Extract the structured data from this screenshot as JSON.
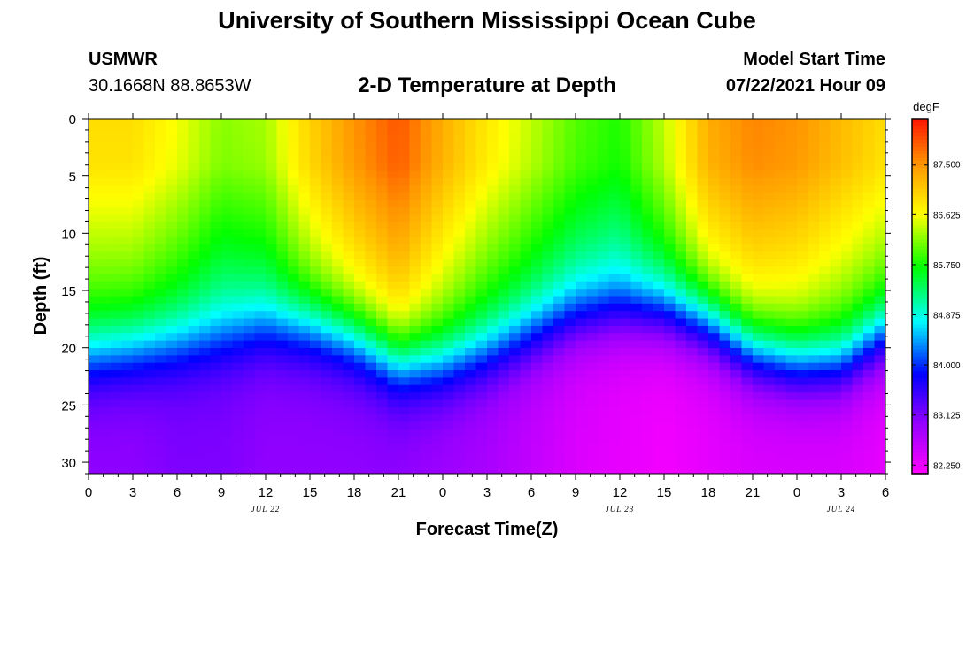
{
  "header": {
    "title": "University of Southern Mississippi Ocean Cube",
    "station": "USMWR",
    "coords": "30.1668N  88.8653W",
    "plot_title": "2-D Temperature at Depth",
    "model_start_label": "Model Start Time",
    "model_start_value": "07/22/2021 Hour 09"
  },
  "footer": {
    "title": "University of Southern Mississippi Ocean Cube"
  },
  "chart_data": {
    "type": "heatmap",
    "title": "2-D Temperature at Depth",
    "xlabel": "Forecast Time(Z)",
    "ylabel": "Depth (ft)",
    "x_range_hours": [
      0,
      54
    ],
    "xlim_description": "Jul 22 00Z to Jul 24 06Z",
    "x_ticks": [
      "0",
      "3",
      "6",
      "9",
      "12",
      "15",
      "18",
      "21",
      "0",
      "3",
      "6",
      "9",
      "12",
      "15",
      "18",
      "21",
      "0",
      "3",
      "6"
    ],
    "date_labels": [
      {
        "label": "JUL 22",
        "hour": 12
      },
      {
        "label": "JUL 23",
        "hour": 36
      },
      {
        "label": "JUL 24",
        "hour": 51
      }
    ],
    "ylim": [
      0,
      31
    ],
    "y_ticks": [
      0,
      5,
      10,
      15,
      20,
      25,
      30
    ],
    "colorbar": {
      "unit": "degF",
      "min": 82.1,
      "max": 88.3,
      "ticks": [
        "87.500",
        "86.625",
        "85.750",
        "84.875",
        "84.000",
        "83.125",
        "82.250"
      ]
    },
    "surface_temp_degF_by_3h": [
      86.9,
      86.9,
      86.6,
      86.2,
      86.3,
      87.0,
      87.5,
      87.9,
      87.3,
      86.8,
      86.4,
      86.0,
      85.8,
      86.4,
      87.3,
      87.6,
      87.5,
      87.2,
      86.9
    ],
    "thermocline_depth_ft_by_3h": [
      21.0,
      20.5,
      20.0,
      19.5,
      18.5,
      18.5,
      19.5,
      21.5,
      21.5,
      20.5,
      19.0,
      17.5,
      17.0,
      17.0,
      18.0,
      20.5,
      21.5,
      21.5,
      19.0
    ],
    "bottom_temp_degF_by_3h": [
      83.0,
      83.0,
      83.1,
      83.1,
      83.0,
      83.0,
      83.0,
      83.0,
      82.9,
      82.8,
      82.6,
      82.4,
      82.3,
      82.2,
      82.3,
      82.4,
      82.4,
      82.4,
      82.3
    ]
  }
}
